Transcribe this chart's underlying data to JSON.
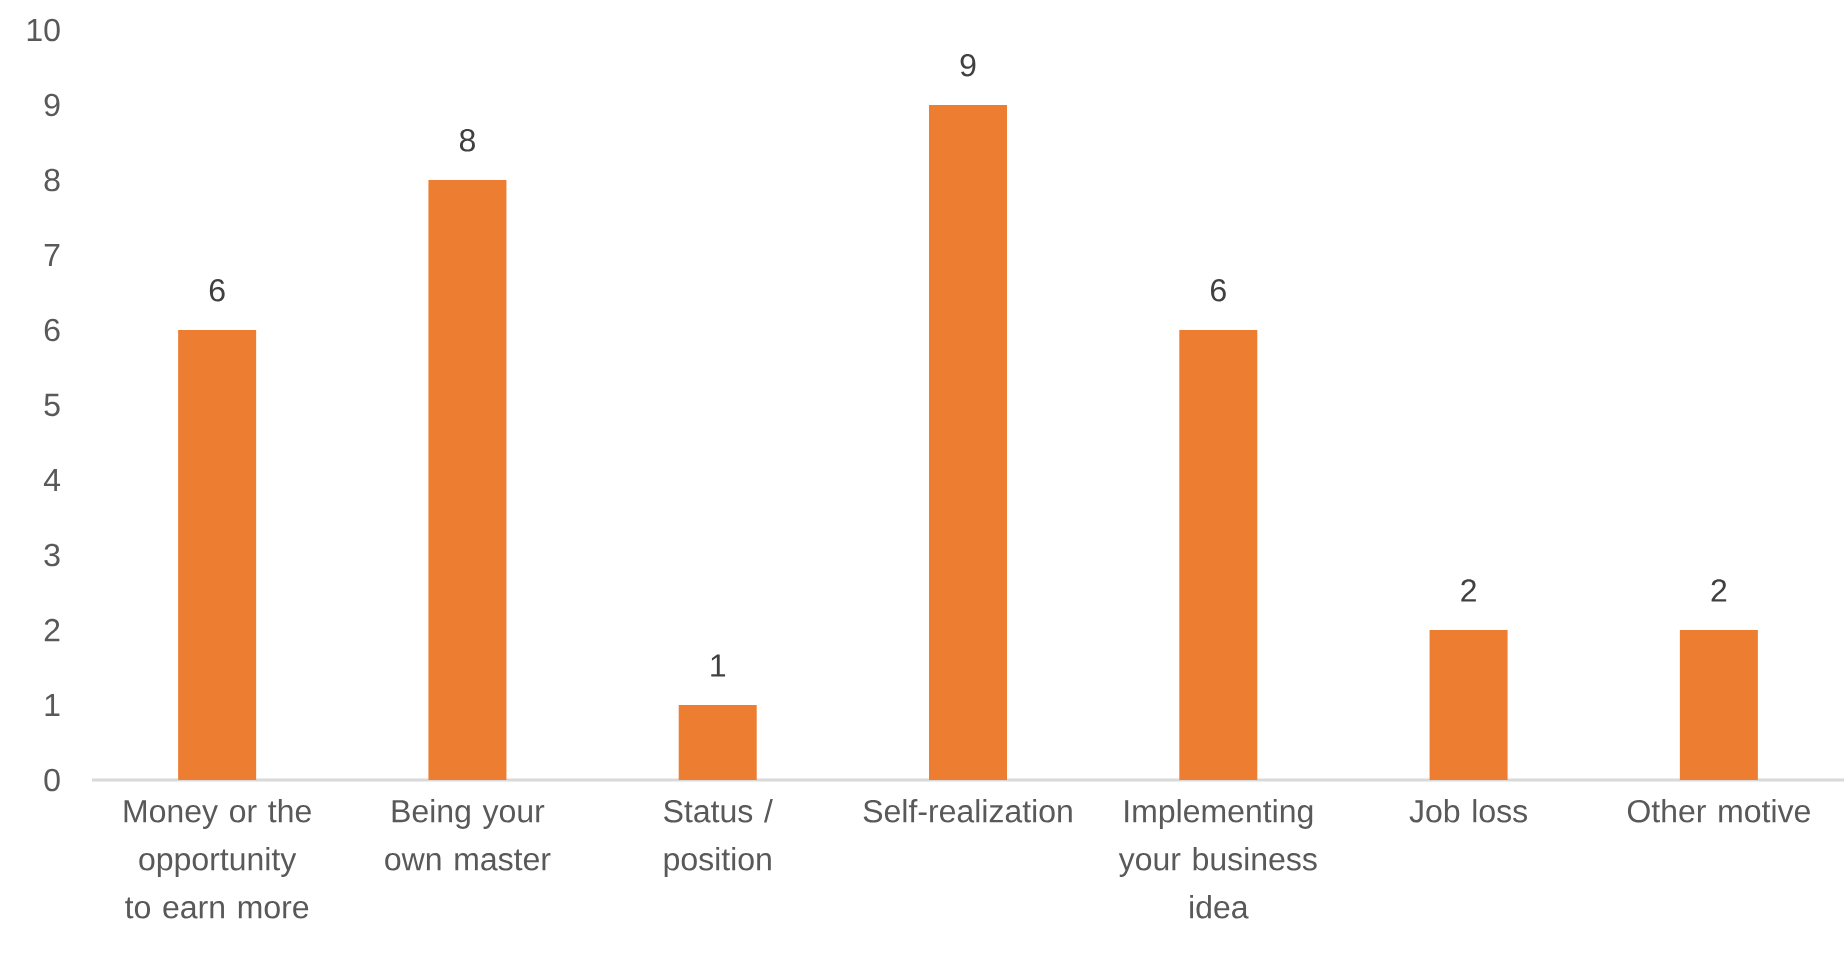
{
  "chart_data": {
    "type": "bar",
    "categories": [
      "Money or the opportunity to earn more",
      "Being your own master",
      "Status / position",
      "Self-realization",
      "Implementing your business idea",
      "Job loss",
      "Other motive"
    ],
    "values": [
      6,
      8,
      1,
      9,
      6,
      2,
      2
    ],
    "color": "#ed7d31",
    "ylim": [
      0,
      10
    ],
    "yticks": [
      0,
      1,
      2,
      3,
      4,
      5,
      6,
      7,
      8,
      9,
      10
    ],
    "data_labels": true
  }
}
